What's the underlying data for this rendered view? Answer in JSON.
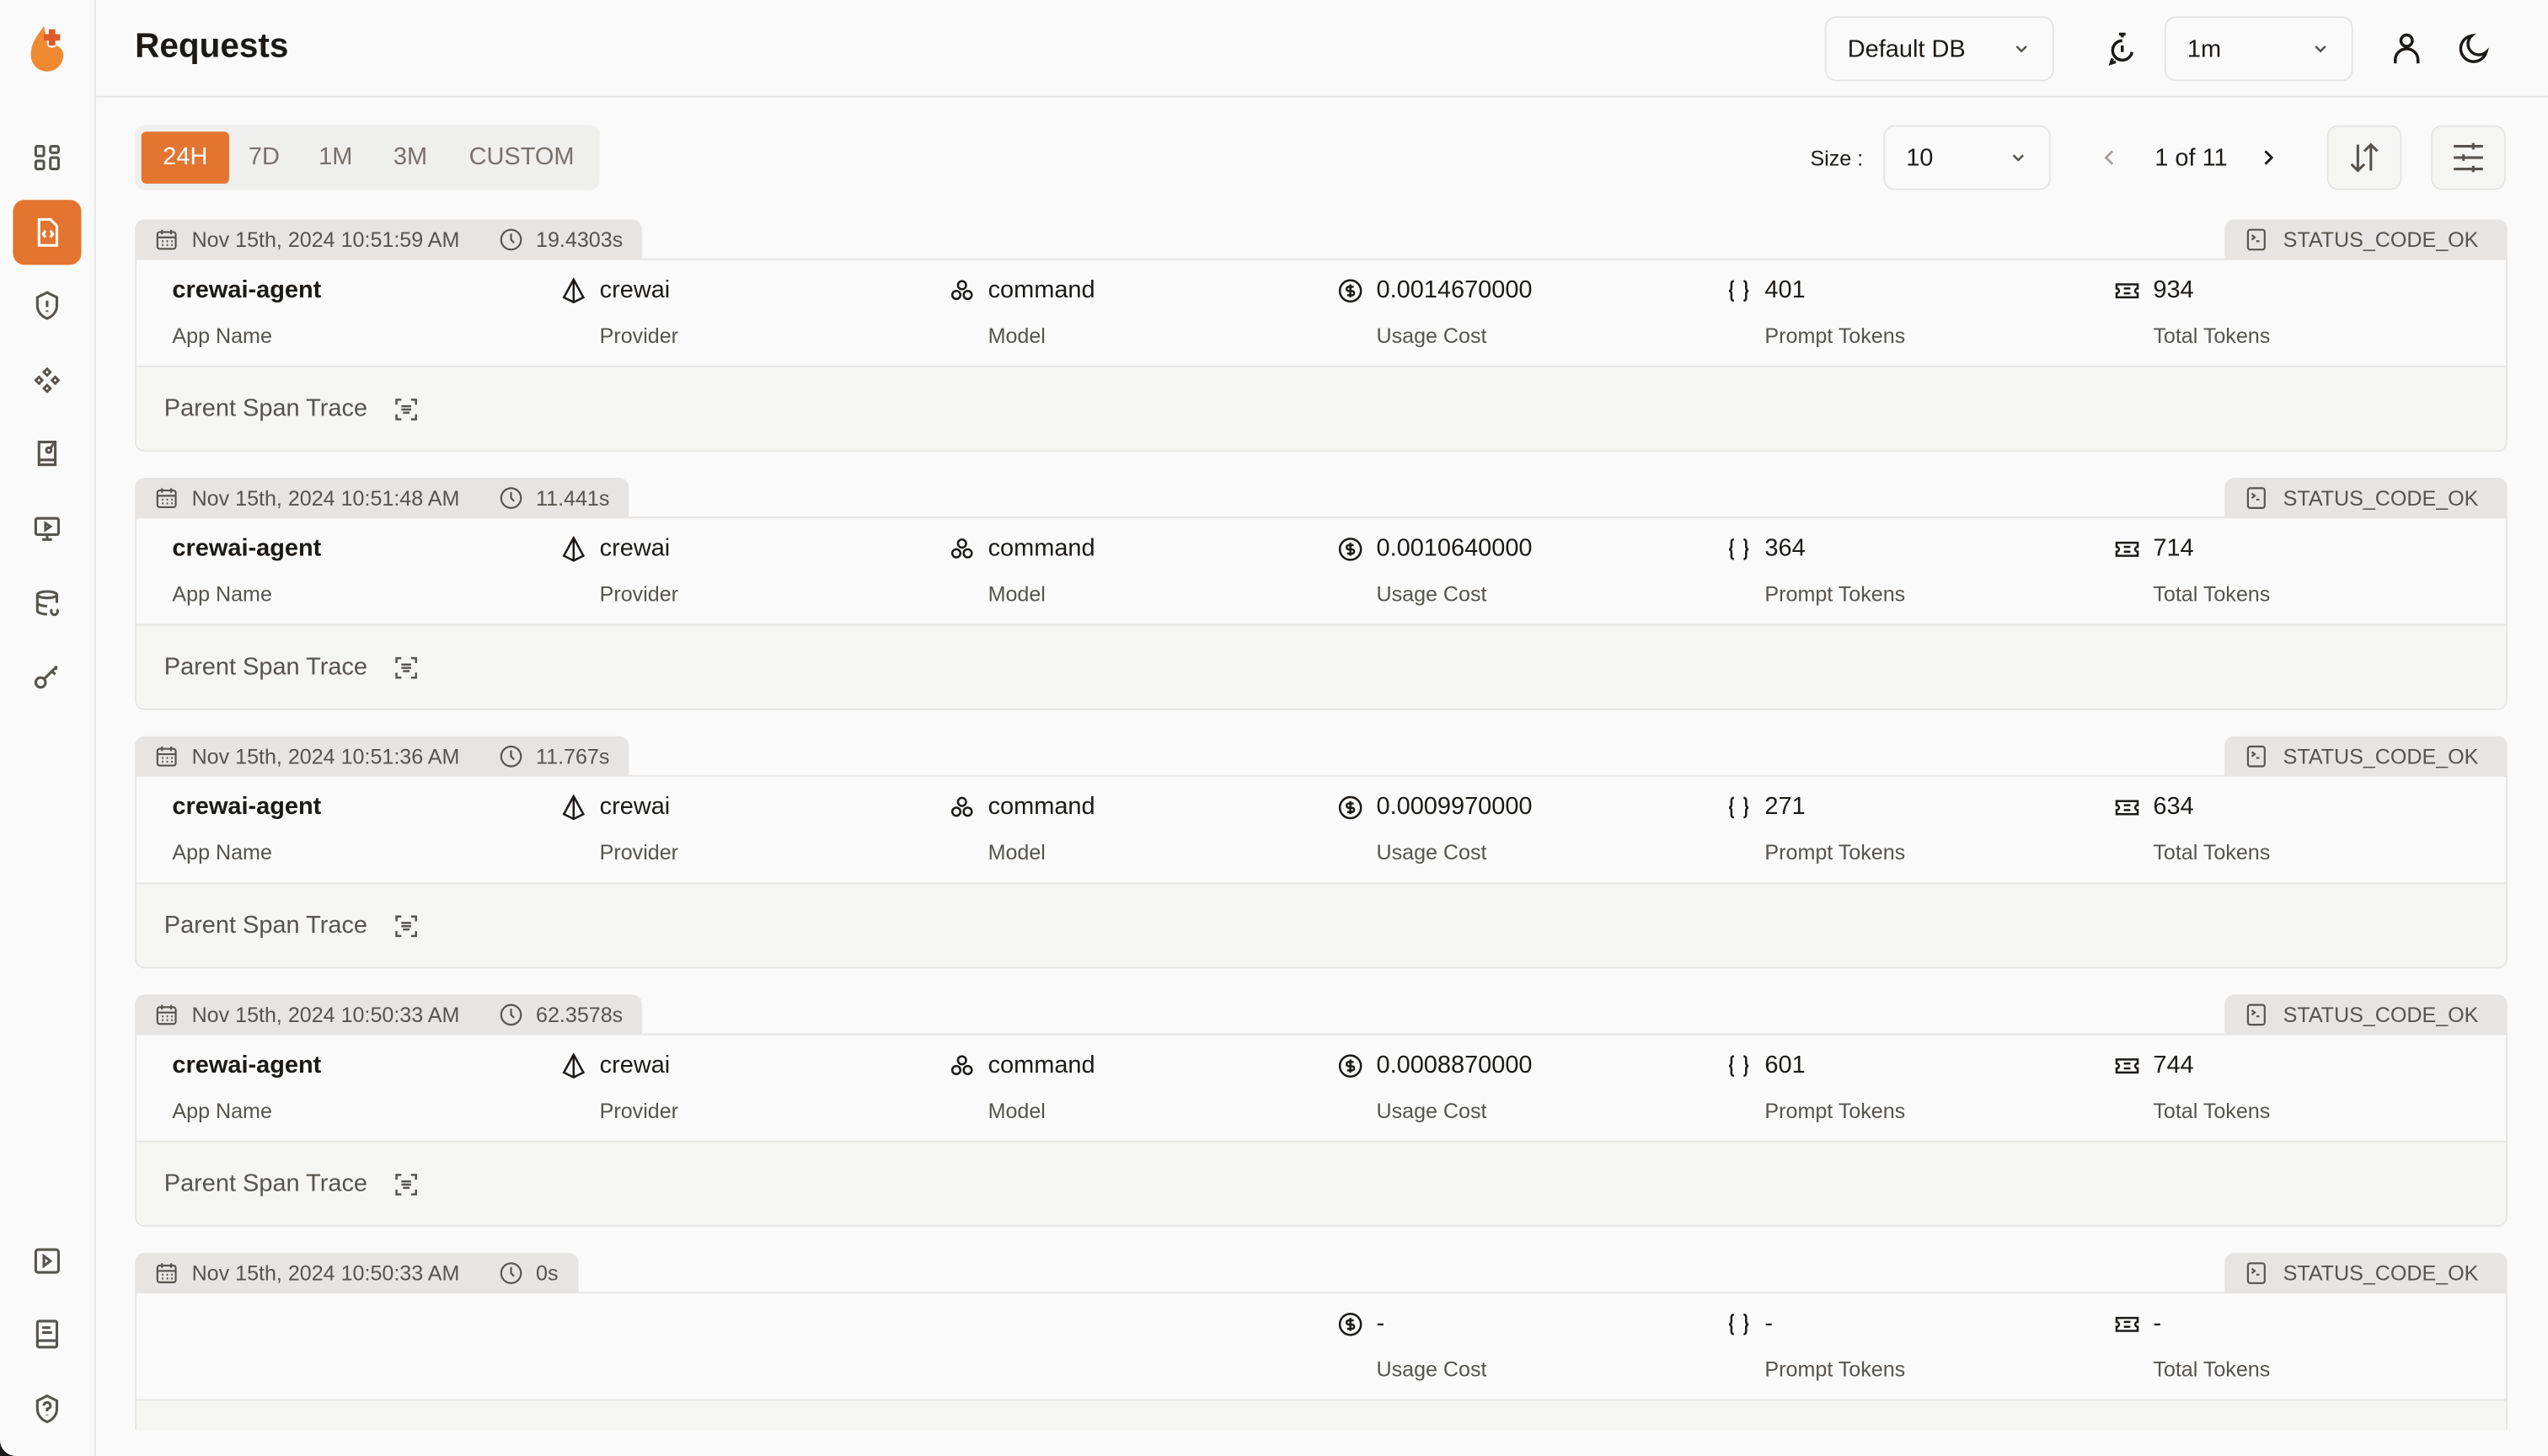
{
  "header": {
    "title": "Requests",
    "db_select": "Default DB",
    "refresh_select": "1m"
  },
  "sidebar": {
    "items": [
      "dashboard",
      "requests",
      "exceptions",
      "prompt-hub",
      "evaluations",
      "openground",
      "vault",
      "api-keys"
    ],
    "bottom": [
      "tutorials",
      "documentation",
      "help"
    ],
    "active": "requests"
  },
  "filters": {
    "tabs": [
      "24H",
      "7D",
      "1M",
      "3M",
      "CUSTOM"
    ],
    "active": "24H",
    "size_label": "Size :",
    "size_value": "10",
    "pagination": "1 of 11"
  },
  "colors": {
    "accent": "#e37530"
  },
  "labels": {
    "app_name": "App Name",
    "provider": "Provider",
    "model": "Model",
    "usage_cost": "Usage Cost",
    "prompt_tokens": "Prompt Tokens",
    "total_tokens": "Total Tokens",
    "parent_span_trace": "Parent Span Trace"
  },
  "requests": [
    {
      "timestamp": "Nov 15th, 2024 10:51:59 AM",
      "duration": "19.4303s",
      "status": "STATUS_CODE_OK",
      "app_name": "crewai-agent",
      "provider": "crewai",
      "model": "command",
      "usage_cost": "0.0014670000",
      "prompt_tokens": "401",
      "total_tokens": "934"
    },
    {
      "timestamp": "Nov 15th, 2024 10:51:48 AM",
      "duration": "11.441s",
      "status": "STATUS_CODE_OK",
      "app_name": "crewai-agent",
      "provider": "crewai",
      "model": "command",
      "usage_cost": "0.0010640000",
      "prompt_tokens": "364",
      "total_tokens": "714"
    },
    {
      "timestamp": "Nov 15th, 2024 10:51:36 AM",
      "duration": "11.767s",
      "status": "STATUS_CODE_OK",
      "app_name": "crewai-agent",
      "provider": "crewai",
      "model": "command",
      "usage_cost": "0.0009970000",
      "prompt_tokens": "271",
      "total_tokens": "634"
    },
    {
      "timestamp": "Nov 15th, 2024 10:50:33 AM",
      "duration": "62.3578s",
      "status": "STATUS_CODE_OK",
      "app_name": "crewai-agent",
      "provider": "crewai",
      "model": "command",
      "usage_cost": "0.0008870000",
      "prompt_tokens": "601",
      "total_tokens": "744"
    },
    {
      "timestamp": "Nov 15th, 2024 10:50:33 AM",
      "duration": "0s",
      "status": "STATUS_CODE_OK",
      "app_name": "",
      "provider": "",
      "model": "",
      "usage_cost": "-",
      "prompt_tokens": "-",
      "total_tokens": "-"
    }
  ]
}
